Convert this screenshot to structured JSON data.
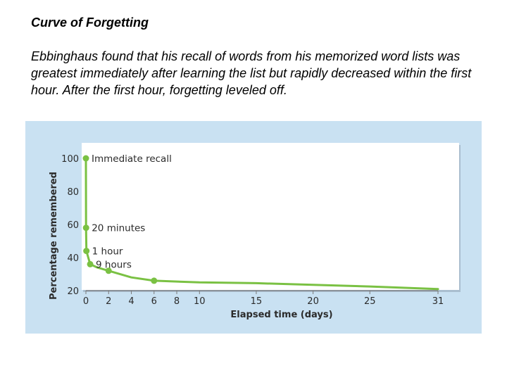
{
  "slide": {
    "title": "Curve of Forgetting",
    "description": "Ebbinghaus found that his recall of words from his memorized word lists was greatest immediately after learning the list but rapidly decreased within the first hour. After the first hour, forgetting leveled off."
  },
  "colors": {
    "background": "#c9e1f2",
    "curve": "#7ac143",
    "marker": "#7ac143",
    "axis": "#7a7a7a"
  },
  "chart_data": {
    "type": "line",
    "title": "",
    "xlabel": "Elapsed time (days)",
    "ylabel": "Percentage remembered",
    "xticks": [
      0,
      2,
      4,
      6,
      8,
      10,
      15,
      20,
      25,
      31
    ],
    "yticks": [
      20,
      40,
      60,
      80,
      100
    ],
    "xlim": [
      0,
      31
    ],
    "ylim": [
      20,
      100
    ],
    "grid": false,
    "series": [
      {
        "points": [
          {
            "x": 0,
            "y": 100
          },
          {
            "x": 0.014,
            "y": 58
          },
          {
            "x": 0.042,
            "y": 44
          },
          {
            "x": 0.375,
            "y": 36
          },
          {
            "x": 1,
            "y": 34
          },
          {
            "x": 2,
            "y": 32
          },
          {
            "x": 4,
            "y": 28
          },
          {
            "x": 6,
            "y": 26
          },
          {
            "x": 10,
            "y": 25
          },
          {
            "x": 15,
            "y": 24.5
          },
          {
            "x": 20,
            "y": 23.5
          },
          {
            "x": 25,
            "y": 22.5
          },
          {
            "x": 31,
            "y": 21
          }
        ]
      }
    ],
    "markers": [
      {
        "x": 0,
        "y": 100,
        "label": "Immediate recall"
      },
      {
        "x": 0.014,
        "y": 58,
        "label": "20 minutes"
      },
      {
        "x": 0.042,
        "y": 44,
        "label": "1 hour"
      },
      {
        "x": 0.375,
        "y": 36,
        "label": "9 hours"
      },
      {
        "x": 2,
        "y": 32,
        "label": ""
      },
      {
        "x": 6,
        "y": 26,
        "label": ""
      }
    ]
  }
}
